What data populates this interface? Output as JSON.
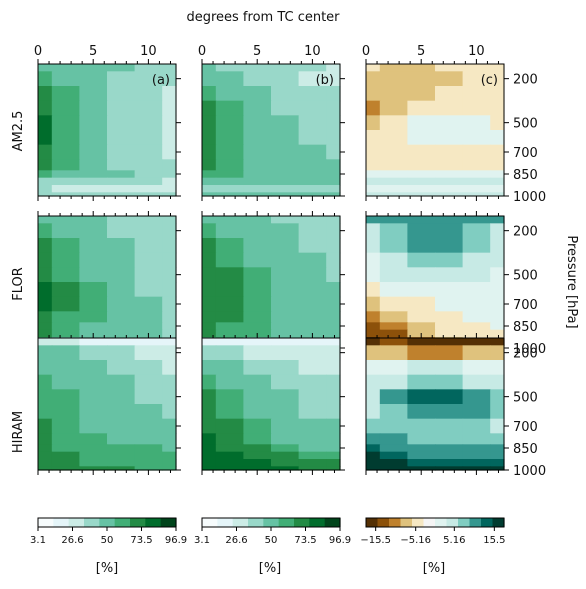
{
  "figure": {
    "top_title": "degrees from TC center",
    "right_label": "Pressure [hPa]",
    "x_ticks": [
      0,
      5,
      10
    ],
    "pressure_ticks": [
      200,
      500,
      700,
      850,
      1000
    ],
    "row_labels": [
      "AM2.5",
      "FLOR",
      "HIRAM"
    ],
    "panel_letters": [
      "(a)",
      "(b)",
      "(c)"
    ]
  },
  "colorbars": [
    {
      "unit": "[%]",
      "ticks": [
        "3.1",
        "26.6",
        "50",
        "73.5",
        "96.9"
      ],
      "palette": "greens"
    },
    {
      "unit": "[%]",
      "ticks": [
        "3.1",
        "26.6",
        "50",
        "73.5",
        "96.9"
      ],
      "palette": "greens"
    },
    {
      "unit": "[%]",
      "ticks": [
        "−15.5",
        "−5.16",
        "5.16",
        "15.5"
      ],
      "palette": "brbg"
    }
  ],
  "colors": {
    "greens": [
      "#f7fcfd",
      "#e5f5f9",
      "#ccece6",
      "#99d8c9",
      "#66c2a4",
      "#41ae76",
      "#238b45",
      "#006d2c",
      "#00441b"
    ],
    "brbg_neg": [
      "#543005",
      "#8c510a",
      "#bf812d",
      "#dfc27d",
      "#f6e8c3"
    ],
    "brbg_pos": [
      "#e0f3f0",
      "#c7eae5",
      "#80cdc1",
      "#35978f",
      "#01665e",
      "#003c30"
    ]
  },
  "chart_data": [
    {
      "type": "heatmap",
      "panel": "AM2.5 (a)",
      "x_label": "degrees from TC center",
      "xlim": [
        0,
        12.5
      ],
      "y_label": "Pressure [hPa]",
      "ylim": [
        1000,
        100
      ],
      "description_of_field": "relative humidity, highest near the center (left) and decreasing outward",
      "x": [
        0,
        2.5,
        5,
        7.5,
        10,
        12.5
      ],
      "y": [
        100,
        200,
        300,
        400,
        500,
        600,
        700,
        800,
        850,
        900,
        950,
        1000
      ],
      "z": [
        [
          62,
          58,
          55,
          52,
          50,
          48
        ],
        [
          70,
          62,
          56,
          50,
          45,
          42
        ],
        [
          78,
          66,
          56,
          48,
          42,
          38
        ],
        [
          84,
          70,
          57,
          46,
          40,
          36
        ],
        [
          86,
          72,
          58,
          46,
          39,
          35
        ],
        [
          86,
          72,
          58,
          46,
          40,
          36
        ],
        [
          84,
          70,
          58,
          48,
          42,
          38
        ],
        [
          80,
          68,
          58,
          50,
          45,
          42
        ],
        [
          68,
          62,
          56,
          52,
          48,
          45
        ],
        [
          50,
          46,
          44,
          42,
          40,
          38
        ],
        [
          40,
          38,
          36,
          35,
          34,
          33
        ],
        [
          48,
          46,
          44,
          42,
          42,
          42
        ]
      ]
    },
    {
      "type": "heatmap",
      "panel": "AM2.5 (b)",
      "xlim": [
        0,
        12.5
      ],
      "ylim": [
        1000,
        100
      ],
      "x": [
        0,
        2.5,
        5,
        7.5,
        10,
        12.5
      ],
      "y": [
        100,
        200,
        300,
        400,
        500,
        600,
        700,
        800,
        850,
        900,
        950,
        1000
      ],
      "z": [
        [
          55,
          50,
          45,
          42,
          40,
          38
        ],
        [
          62,
          54,
          47,
          42,
          38,
          36
        ],
        [
          72,
          60,
          52,
          46,
          42,
          40
        ],
        [
          80,
          66,
          56,
          50,
          45,
          42
        ],
        [
          82,
          68,
          58,
          52,
          47,
          44
        ],
        [
          82,
          70,
          60,
          54,
          49,
          46
        ],
        [
          80,
          70,
          62,
          56,
          52,
          48
        ],
        [
          76,
          68,
          62,
          58,
          54,
          52
        ],
        [
          68,
          64,
          60,
          58,
          56,
          54
        ],
        [
          60,
          58,
          56,
          55,
          54,
          54
        ],
        [
          50,
          50,
          50,
          50,
          50,
          50
        ],
        [
          52,
          52,
          52,
          52,
          52,
          52
        ]
      ]
    },
    {
      "type": "heatmap",
      "panel": "AM2.5 (c)",
      "xlim": [
        0,
        12.5
      ],
      "ylim": [
        1000,
        100
      ],
      "x": [
        0,
        2.5,
        5,
        7.5,
        10,
        12.5
      ],
      "y": [
        100,
        200,
        300,
        400,
        500,
        600,
        700,
        800,
        850,
        900,
        950,
        1000
      ],
      "z": [
        [
          -3,
          -4,
          -4,
          -3,
          -3,
          -3
        ],
        [
          -4,
          -5,
          -5,
          -4,
          -3,
          -3
        ],
        [
          -5,
          -6,
          -4,
          -3,
          -3,
          -2
        ],
        [
          -8,
          -4,
          -2,
          -1,
          -1,
          -2
        ],
        [
          -4,
          -1,
          1,
          1,
          1,
          -1
        ],
        [
          -3,
          -1,
          2,
          2,
          2,
          0
        ],
        [
          -2,
          -2,
          -3,
          -3,
          -3,
          -2
        ],
        [
          -1,
          -2,
          -2,
          -2,
          -1,
          -1
        ],
        [
          2,
          2,
          1,
          1,
          1,
          1
        ],
        [
          5,
          5,
          4,
          4,
          4,
          4
        ],
        [
          3,
          3,
          3,
          3,
          3,
          3
        ],
        [
          4,
          4,
          4,
          4,
          4,
          4
        ]
      ]
    },
    {
      "type": "heatmap",
      "panel": "FLOR (a)",
      "xlim": [
        0,
        12.5
      ],
      "ylim": [
        1000,
        100
      ],
      "x": [
        0,
        2.5,
        5,
        7.5,
        10,
        12.5
      ],
      "y": [
        100,
        200,
        300,
        400,
        500,
        600,
        700,
        800,
        850,
        900,
        950,
        1000
      ],
      "z": [
        [
          58,
          55,
          52,
          50,
          48,
          46
        ],
        [
          66,
          60,
          55,
          50,
          46,
          44
        ],
        [
          74,
          66,
          58,
          52,
          48,
          45
        ],
        [
          80,
          70,
          60,
          54,
          50,
          46
        ],
        [
          84,
          72,
          62,
          55,
          50,
          47
        ],
        [
          86,
          74,
          64,
          56,
          50,
          47
        ],
        [
          86,
          74,
          64,
          56,
          51,
          48
        ],
        [
          84,
          72,
          63,
          56,
          51,
          48
        ],
        [
          80,
          70,
          62,
          56,
          52,
          49
        ],
        [
          76,
          66,
          60,
          55,
          52,
          50
        ],
        [
          70,
          62,
          58,
          55,
          52,
          50
        ],
        [
          66,
          60,
          56,
          54,
          52,
          50
        ]
      ]
    },
    {
      "type": "heatmap",
      "panel": "FLOR (b)",
      "xlim": [
        0,
        12.5
      ],
      "ylim": [
        1000,
        100
      ],
      "x": [
        0,
        2.5,
        5,
        7.5,
        10,
        12.5
      ],
      "y": [
        100,
        200,
        300,
        400,
        500,
        600,
        700,
        800,
        850,
        900,
        950,
        1000
      ],
      "z": [
        [
          60,
          56,
          52,
          50,
          48,
          46
        ],
        [
          68,
          62,
          56,
          52,
          48,
          46
        ],
        [
          76,
          68,
          60,
          54,
          50,
          48
        ],
        [
          82,
          72,
          62,
          56,
          52,
          49
        ],
        [
          84,
          74,
          64,
          57,
          53,
          50
        ],
        [
          84,
          74,
          65,
          58,
          54,
          51
        ],
        [
          84,
          74,
          66,
          60,
          55,
          52
        ],
        [
          82,
          74,
          66,
          60,
          56,
          53
        ],
        [
          80,
          72,
          66,
          60,
          57,
          54
        ],
        [
          76,
          70,
          64,
          60,
          57,
          55
        ],
        [
          72,
          68,
          62,
          60,
          57,
          55
        ],
        [
          70,
          66,
          62,
          59,
          57,
          55
        ]
      ]
    },
    {
      "type": "heatmap",
      "panel": "FLOR (c)",
      "xlim": [
        0,
        12.5
      ],
      "ylim": [
        1000,
        100
      ],
      "x": [
        0,
        2.5,
        5,
        7.5,
        10,
        12.5
      ],
      "y": [
        100,
        200,
        300,
        400,
        500,
        600,
        700,
        800,
        850,
        900,
        950,
        1000
      ],
      "z": [
        [
          10,
          10,
          10,
          10,
          11,
          12
        ],
        [
          6,
          8,
          10,
          11,
          9,
          6
        ],
        [
          4,
          7,
          11,
          12,
          8,
          5
        ],
        [
          3,
          6,
          8,
          8,
          6,
          4
        ],
        [
          2,
          4,
          6,
          6,
          5,
          3
        ],
        [
          -2,
          1,
          2,
          2,
          1,
          1
        ],
        [
          -5,
          -2,
          -1,
          0,
          0,
          1
        ],
        [
          -8,
          -5,
          -2,
          -1,
          0,
          0
        ],
        [
          -10,
          -8,
          -4,
          -2,
          -1,
          0
        ],
        [
          -12,
          -10,
          -6,
          -3,
          -2,
          -1
        ],
        [
          -14,
          -12,
          -8,
          -4,
          -2,
          -1
        ],
        [
          -16,
          -14,
          -10,
          -5,
          -3,
          -2
        ]
      ]
    },
    {
      "type": "heatmap",
      "panel": "HIRAM (a)",
      "xlim": [
        0,
        12.5
      ],
      "ylim": [
        1000,
        100
      ],
      "x": [
        0,
        2.5,
        5,
        7.5,
        10,
        12.5
      ],
      "y": [
        100,
        200,
        300,
        400,
        500,
        600,
        700,
        800,
        850,
        900,
        950,
        1000
      ],
      "z": [
        [
          30,
          28,
          26,
          24,
          22,
          20
        ],
        [
          54,
          52,
          50,
          48,
          36,
          32
        ],
        [
          60,
          58,
          54,
          50,
          40,
          36
        ],
        [
          64,
          60,
          56,
          52,
          46,
          42
        ],
        [
          68,
          64,
          58,
          54,
          50,
          48
        ],
        [
          72,
          66,
          60,
          56,
          52,
          50
        ],
        [
          74,
          68,
          62,
          58,
          54,
          52
        ],
        [
          76,
          70,
          66,
          62,
          58,
          56
        ],
        [
          76,
          72,
          68,
          66,
          64,
          62
        ],
        [
          76,
          74,
          72,
          70,
          68,
          66
        ],
        [
          76,
          74,
          72,
          72,
          70,
          70
        ],
        [
          76,
          76,
          74,
          74,
          72,
          72
        ]
      ]
    },
    {
      "type": "heatmap",
      "panel": "HIRAM (b)",
      "xlim": [
        0,
        12.5
      ],
      "ylim": [
        1000,
        100
      ],
      "x": [
        0,
        2.5,
        5,
        7.5,
        10,
        12.5
      ],
      "y": [
        100,
        200,
        300,
        400,
        500,
        600,
        700,
        800,
        850,
        900,
        950,
        1000
      ],
      "z": [
        [
          20,
          20,
          20,
          20,
          20,
          20
        ],
        [
          42,
          40,
          36,
          32,
          30,
          28
        ],
        [
          56,
          52,
          48,
          42,
          38,
          36
        ],
        [
          66,
          60,
          54,
          48,
          44,
          42
        ],
        [
          74,
          66,
          58,
          52,
          48,
          46
        ],
        [
          80,
          72,
          62,
          55,
          50,
          48
        ],
        [
          84,
          76,
          66,
          58,
          54,
          52
        ],
        [
          88,
          80,
          70,
          62,
          58,
          56
        ],
        [
          90,
          84,
          76,
          68,
          62,
          60
        ],
        [
          92,
          88,
          82,
          76,
          70,
          66
        ],
        [
          94,
          90,
          86,
          82,
          78,
          74
        ],
        [
          94,
          92,
          88,
          86,
          82,
          80
        ]
      ]
    },
    {
      "type": "heatmap",
      "panel": "HIRAM (c)",
      "xlim": [
        0,
        12.5
      ],
      "ylim": [
        1000,
        100
      ],
      "x": [
        0,
        2.5,
        5,
        7.5,
        10,
        12.5
      ],
      "y": [
        100,
        200,
        300,
        400,
        500,
        600,
        700,
        800,
        850,
        900,
        950,
        1000
      ],
      "z": [
        [
          -14,
          -12,
          -14,
          -16,
          -16,
          -14
        ],
        [
          -4,
          -6,
          -8,
          -8,
          -6,
          -4
        ],
        [
          2,
          3,
          4,
          4,
          3,
          2
        ],
        [
          4,
          6,
          8,
          8,
          6,
          5
        ],
        [
          6,
          10,
          14,
          14,
          12,
          8
        ],
        [
          6,
          9,
          12,
          12,
          10,
          7
        ],
        [
          8,
          8,
          8,
          8,
          7,
          6
        ],
        [
          12,
          10,
          8,
          8,
          8,
          8
        ],
        [
          14,
          12,
          10,
          10,
          10,
          10
        ],
        [
          16,
          14,
          12,
          12,
          12,
          12
        ],
        [
          18,
          16,
          14,
          14,
          14,
          14
        ],
        [
          18,
          18,
          16,
          16,
          16,
          16
        ]
      ]
    }
  ]
}
